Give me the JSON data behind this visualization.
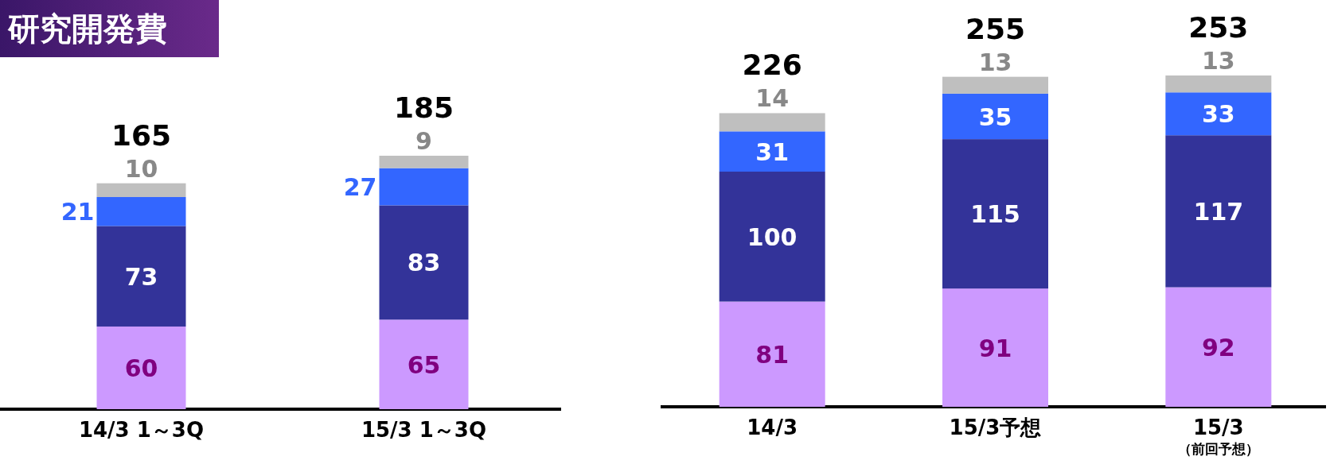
{
  "chart_data": [
    {
      "type": "bar",
      "title": "研究開発費",
      "stacked": true,
      "data_labels": true,
      "categories": [
        "14/3  1～3Q",
        "15/3  1～3Q"
      ],
      "series": [
        {
          "color": "#cc99ff",
          "values": [
            60,
            65
          ]
        },
        {
          "color": "#333399",
          "values": [
            73,
            83
          ]
        },
        {
          "color": "#3366ff",
          "values": [
            21,
            27
          ]
        },
        {
          "color": "#bfbfbf",
          "values": [
            10,
            9
          ]
        }
      ],
      "totals": [
        "165",
        "185"
      ]
    },
    {
      "type": "bar",
      "stacked": true,
      "data_labels": true,
      "categories": [
        "14/3",
        "15/3予想",
        "15/3\n（前回予想）"
      ],
      "series": [
        {
          "color": "#cc99ff",
          "values": [
            81,
            91,
            92
          ]
        },
        {
          "color": "#333399",
          "values": [
            100,
            115,
            117
          ]
        },
        {
          "color": "#3366ff",
          "values": [
            31,
            35,
            33
          ]
        },
        {
          "color": "#bfbfbf",
          "values": [
            14,
            13,
            13
          ]
        }
      ],
      "totals": [
        "226",
        "255",
        "253"
      ]
    }
  ]
}
